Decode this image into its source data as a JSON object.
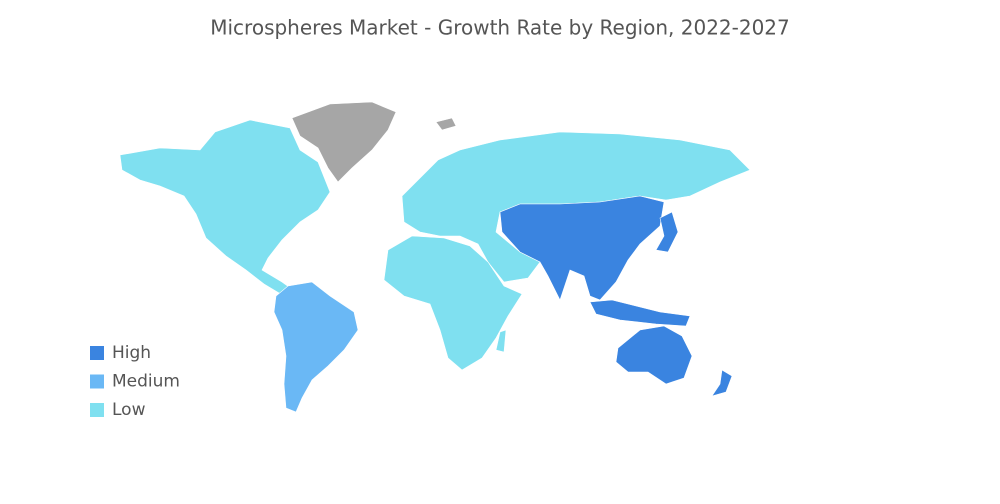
{
  "title": "Microspheres Market - Growth Rate by Region, 2022-2027",
  "legend": [
    {
      "label": "High",
      "color": "#3a84e0"
    },
    {
      "label": "Medium",
      "color": "#6ab8f5"
    },
    {
      "label": "Low",
      "color": "#7fe0f0"
    }
  ],
  "no_data_color": "#a6a6a6"
}
